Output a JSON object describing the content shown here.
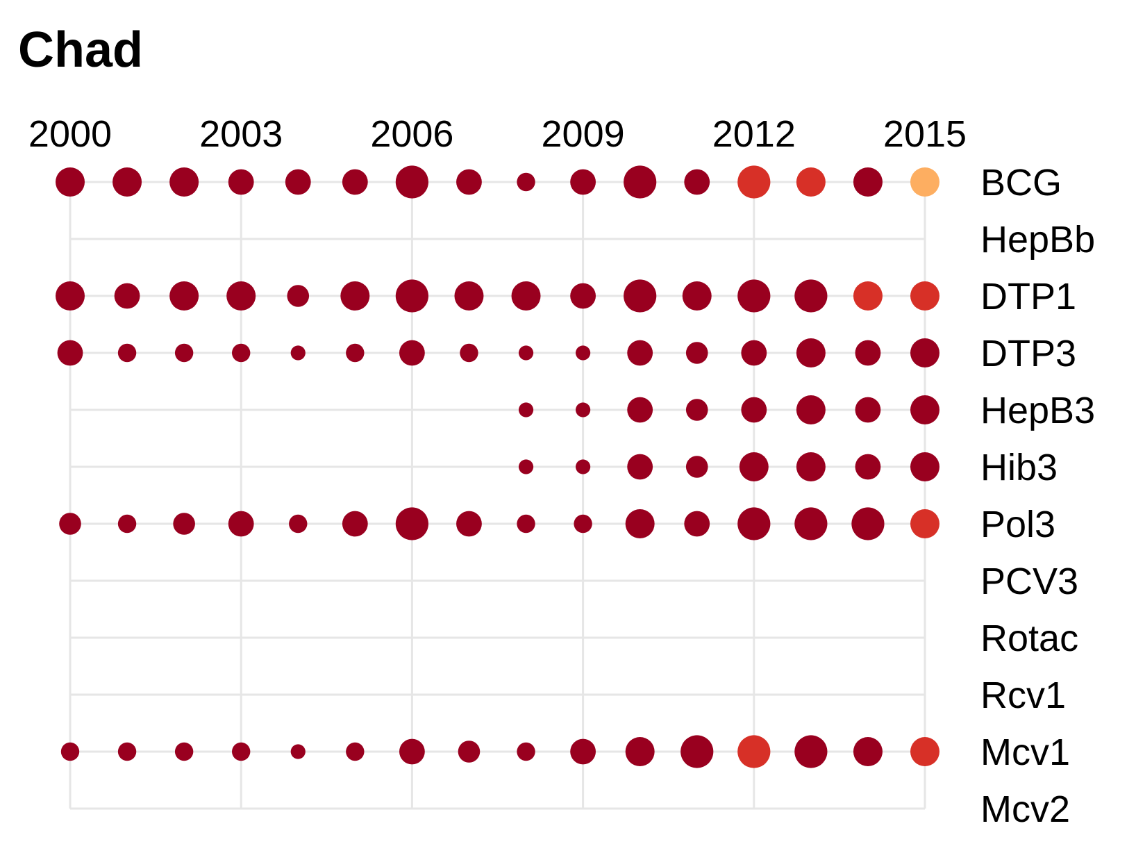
{
  "chart_data": {
    "type": "scatter",
    "title": "Chad",
    "xlabel": "",
    "ylabel": "",
    "x_ticks": [
      "2000",
      "2003",
      "2006",
      "2009",
      "2012",
      "2015"
    ],
    "xlim": [
      2000,
      2015
    ],
    "categories": [
      "BCG",
      "HepBb",
      "DTP1",
      "DTP3",
      "HepB3",
      "Hib3",
      "Pol3",
      "PCV3",
      "Rotac",
      "Rcv1",
      "Mcv1",
      "Mcv2"
    ],
    "grid": true,
    "legend": "none",
    "colors": {
      "dark": "#99001f",
      "mid": "#d73027",
      "light": "#fdae61",
      "grid": "#e6e6e6"
    },
    "series": [
      {
        "vaccine": "BCG",
        "points": [
          {
            "year": 2000,
            "size": 5,
            "color": "dark"
          },
          {
            "year": 2001,
            "size": 5,
            "color": "dark"
          },
          {
            "year": 2002,
            "size": 5,
            "color": "dark"
          },
          {
            "year": 2003,
            "size": 4,
            "color": "dark"
          },
          {
            "year": 2004,
            "size": 4,
            "color": "dark"
          },
          {
            "year": 2005,
            "size": 4,
            "color": "dark"
          },
          {
            "year": 2006,
            "size": 6,
            "color": "dark"
          },
          {
            "year": 2007,
            "size": 4,
            "color": "dark"
          },
          {
            "year": 2008,
            "size": 2,
            "color": "dark"
          },
          {
            "year": 2009,
            "size": 4,
            "color": "dark"
          },
          {
            "year": 2010,
            "size": 6,
            "color": "dark"
          },
          {
            "year": 2011,
            "size": 4,
            "color": "dark"
          },
          {
            "year": 2012,
            "size": 6,
            "color": "mid"
          },
          {
            "year": 2013,
            "size": 5,
            "color": "mid"
          },
          {
            "year": 2014,
            "size": 5,
            "color": "dark"
          },
          {
            "year": 2015,
            "size": 5,
            "color": "light"
          }
        ]
      },
      {
        "vaccine": "HepBb",
        "points": []
      },
      {
        "vaccine": "DTP1",
        "points": [
          {
            "year": 2000,
            "size": 5,
            "color": "dark"
          },
          {
            "year": 2001,
            "size": 4,
            "color": "dark"
          },
          {
            "year": 2002,
            "size": 5,
            "color": "dark"
          },
          {
            "year": 2003,
            "size": 5,
            "color": "dark"
          },
          {
            "year": 2004,
            "size": 3,
            "color": "dark"
          },
          {
            "year": 2005,
            "size": 5,
            "color": "dark"
          },
          {
            "year": 2006,
            "size": 6,
            "color": "dark"
          },
          {
            "year": 2007,
            "size": 5,
            "color": "dark"
          },
          {
            "year": 2008,
            "size": 5,
            "color": "dark"
          },
          {
            "year": 2009,
            "size": 4,
            "color": "dark"
          },
          {
            "year": 2010,
            "size": 6,
            "color": "dark"
          },
          {
            "year": 2011,
            "size": 5,
            "color": "dark"
          },
          {
            "year": 2012,
            "size": 6,
            "color": "dark"
          },
          {
            "year": 2013,
            "size": 6,
            "color": "dark"
          },
          {
            "year": 2014,
            "size": 5,
            "color": "mid"
          },
          {
            "year": 2015,
            "size": 5,
            "color": "mid"
          }
        ]
      },
      {
        "vaccine": "DTP3",
        "points": [
          {
            "year": 2000,
            "size": 4,
            "color": "dark"
          },
          {
            "year": 2001,
            "size": 2,
            "color": "dark"
          },
          {
            "year": 2002,
            "size": 2,
            "color": "dark"
          },
          {
            "year": 2003,
            "size": 2,
            "color": "dark"
          },
          {
            "year": 2004,
            "size": 1,
            "color": "dark"
          },
          {
            "year": 2005,
            "size": 2,
            "color": "dark"
          },
          {
            "year": 2006,
            "size": 4,
            "color": "dark"
          },
          {
            "year": 2007,
            "size": 2,
            "color": "dark"
          },
          {
            "year": 2008,
            "size": 1,
            "color": "dark"
          },
          {
            "year": 2009,
            "size": 1,
            "color": "dark"
          },
          {
            "year": 2010,
            "size": 4,
            "color": "dark"
          },
          {
            "year": 2011,
            "size": 3,
            "color": "dark"
          },
          {
            "year": 2012,
            "size": 4,
            "color": "dark"
          },
          {
            "year": 2013,
            "size": 5,
            "color": "dark"
          },
          {
            "year": 2014,
            "size": 4,
            "color": "dark"
          },
          {
            "year": 2015,
            "size": 5,
            "color": "dark"
          }
        ]
      },
      {
        "vaccine": "HepB3",
        "points": [
          {
            "year": 2008,
            "size": 1,
            "color": "dark"
          },
          {
            "year": 2009,
            "size": 1,
            "color": "dark"
          },
          {
            "year": 2010,
            "size": 4,
            "color": "dark"
          },
          {
            "year": 2011,
            "size": 3,
            "color": "dark"
          },
          {
            "year": 2012,
            "size": 4,
            "color": "dark"
          },
          {
            "year": 2013,
            "size": 5,
            "color": "dark"
          },
          {
            "year": 2014,
            "size": 4,
            "color": "dark"
          },
          {
            "year": 2015,
            "size": 5,
            "color": "dark"
          }
        ]
      },
      {
        "vaccine": "Hib3",
        "points": [
          {
            "year": 2008,
            "size": 1,
            "color": "dark"
          },
          {
            "year": 2009,
            "size": 1,
            "color": "dark"
          },
          {
            "year": 2010,
            "size": 4,
            "color": "dark"
          },
          {
            "year": 2011,
            "size": 3,
            "color": "dark"
          },
          {
            "year": 2012,
            "size": 5,
            "color": "dark"
          },
          {
            "year": 2013,
            "size": 5,
            "color": "dark"
          },
          {
            "year": 2014,
            "size": 4,
            "color": "dark"
          },
          {
            "year": 2015,
            "size": 5,
            "color": "dark"
          }
        ]
      },
      {
        "vaccine": "Pol3",
        "points": [
          {
            "year": 2000,
            "size": 3,
            "color": "dark"
          },
          {
            "year": 2001,
            "size": 2,
            "color": "dark"
          },
          {
            "year": 2002,
            "size": 3,
            "color": "dark"
          },
          {
            "year": 2003,
            "size": 4,
            "color": "dark"
          },
          {
            "year": 2004,
            "size": 2,
            "color": "dark"
          },
          {
            "year": 2005,
            "size": 4,
            "color": "dark"
          },
          {
            "year": 2006,
            "size": 6,
            "color": "dark"
          },
          {
            "year": 2007,
            "size": 4,
            "color": "dark"
          },
          {
            "year": 2008,
            "size": 2,
            "color": "dark"
          },
          {
            "year": 2009,
            "size": 2,
            "color": "dark"
          },
          {
            "year": 2010,
            "size": 5,
            "color": "dark"
          },
          {
            "year": 2011,
            "size": 4,
            "color": "dark"
          },
          {
            "year": 2012,
            "size": 6,
            "color": "dark"
          },
          {
            "year": 2013,
            "size": 6,
            "color": "dark"
          },
          {
            "year": 2014,
            "size": 6,
            "color": "dark"
          },
          {
            "year": 2015,
            "size": 5,
            "color": "mid"
          }
        ]
      },
      {
        "vaccine": "PCV3",
        "points": []
      },
      {
        "vaccine": "Rotac",
        "points": []
      },
      {
        "vaccine": "Rcv1",
        "points": []
      },
      {
        "vaccine": "Mcv1",
        "points": [
          {
            "year": 2000,
            "size": 2,
            "color": "dark"
          },
          {
            "year": 2001,
            "size": 2,
            "color": "dark"
          },
          {
            "year": 2002,
            "size": 2,
            "color": "dark"
          },
          {
            "year": 2003,
            "size": 2,
            "color": "dark"
          },
          {
            "year": 2004,
            "size": 1,
            "color": "dark"
          },
          {
            "year": 2005,
            "size": 2,
            "color": "dark"
          },
          {
            "year": 2006,
            "size": 4,
            "color": "dark"
          },
          {
            "year": 2007,
            "size": 3,
            "color": "dark"
          },
          {
            "year": 2008,
            "size": 2,
            "color": "dark"
          },
          {
            "year": 2009,
            "size": 4,
            "color": "dark"
          },
          {
            "year": 2010,
            "size": 5,
            "color": "dark"
          },
          {
            "year": 2011,
            "size": 6,
            "color": "dark"
          },
          {
            "year": 2012,
            "size": 6,
            "color": "mid"
          },
          {
            "year": 2013,
            "size": 6,
            "color": "dark"
          },
          {
            "year": 2014,
            "size": 5,
            "color": "dark"
          },
          {
            "year": 2015,
            "size": 5,
            "color": "mid"
          }
        ]
      },
      {
        "vaccine": "Mcv2",
        "points": []
      }
    ]
  }
}
